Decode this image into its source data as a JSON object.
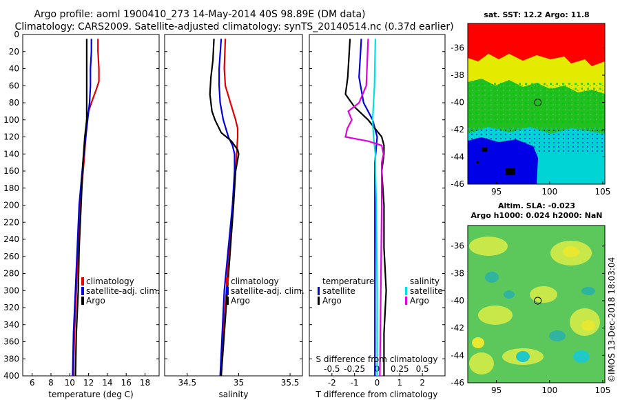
{
  "header": {
    "line1": "Argo profile: aoml 1900410_273 14-May-2014 40S 98.89E (DM data)",
    "line2": "Climatology: CARS2009. Satellite-adjusted climatology: synTS_20140514.nc (0.37d earlier)"
  },
  "depth_ticks": [
    "0",
    "20",
    "40",
    "60",
    "80",
    "100",
    "120",
    "140",
    "160",
    "180",
    "200",
    "220",
    "240",
    "260",
    "280",
    "300",
    "320",
    "340",
    "360",
    "380",
    "400"
  ],
  "colors": {
    "climatology": "#e00000",
    "satellite": "#0000e0",
    "argo": "#000000",
    "sat_salinity": "#00e0e0",
    "argo_salinity": "#e000e0"
  },
  "chart_data": [
    {
      "type": "line",
      "name": "temperature",
      "xlabel": "temperature (deg C)",
      "ylabel": "depth",
      "xlim": [
        5,
        19.5
      ],
      "ylim": [
        400,
        0
      ],
      "xticks": [
        6,
        8,
        10,
        12,
        14,
        16,
        18
      ],
      "xtick_labels": [
        "6",
        "8",
        "10",
        "12",
        "14",
        "16",
        "18"
      ],
      "legend": [
        "climatology",
        "satellite-adj. clim.",
        "Argo"
      ],
      "series": [
        {
          "name": "climatology",
          "depths": [
            5,
            20,
            40,
            55,
            65,
            80,
            90,
            100,
            120,
            150,
            200,
            250,
            300,
            350,
            400
          ],
          "values": [
            13.0,
            13.0,
            13.1,
            13.1,
            12.8,
            12.3,
            12.0,
            11.8,
            11.7,
            11.5,
            11.1,
            10.9,
            10.7,
            10.5,
            10.4
          ]
        },
        {
          "name": "satellite-adj. clim.",
          "depths": [
            5,
            20,
            40,
            60,
            80,
            100,
            120,
            150,
            200,
            250,
            300,
            350,
            400
          ],
          "values": [
            12.3,
            12.3,
            12.2,
            12.2,
            12.1,
            11.9,
            11.7,
            11.4,
            11.0,
            10.8,
            10.6,
            10.4,
            10.3
          ]
        },
        {
          "name": "Argo",
          "depths": [
            5,
            20,
            40,
            60,
            80,
            100,
            120,
            150,
            200,
            250,
            300,
            350,
            400
          ],
          "values": [
            11.8,
            11.8,
            11.8,
            11.8,
            11.8,
            11.8,
            11.6,
            11.4,
            11.2,
            11.0,
            10.9,
            10.7,
            10.6
          ]
        }
      ]
    },
    {
      "type": "line",
      "name": "salinity",
      "xlabel": "salinity",
      "ylabel": "depth",
      "xlim": [
        34.28,
        35.62
      ],
      "ylim": [
        400,
        0
      ],
      "xticks": [
        34.5,
        35,
        35.5
      ],
      "xtick_labels": [
        "34.5",
        "35",
        "35.5"
      ],
      "legend": [
        "climatology",
        "satellite-adj. clim.",
        "Argo"
      ],
      "series": [
        {
          "name": "climatology",
          "depths": [
            5,
            40,
            60,
            80,
            100,
            110,
            120,
            140,
            160,
            200,
            250,
            300,
            350,
            400
          ],
          "values": [
            34.87,
            34.86,
            34.87,
            34.92,
            34.97,
            34.99,
            34.99,
            34.98,
            34.97,
            34.94,
            34.91,
            34.88,
            34.85,
            34.83
          ]
        },
        {
          "name": "satellite-adj. clim.",
          "depths": [
            5,
            40,
            60,
            80,
            100,
            120,
            130,
            140,
            160,
            200,
            250,
            300,
            350,
            400
          ],
          "values": [
            34.83,
            34.81,
            34.81,
            34.82,
            34.85,
            34.9,
            34.94,
            34.96,
            34.96,
            34.94,
            34.9,
            34.86,
            34.84,
            34.82
          ]
        },
        {
          "name": "Argo",
          "depths": [
            5,
            30,
            50,
            70,
            90,
            100,
            115,
            125,
            135,
            140,
            160,
            200,
            250,
            300,
            350,
            400
          ],
          "values": [
            34.76,
            34.75,
            34.73,
            34.72,
            34.74,
            34.77,
            34.83,
            34.93,
            34.99,
            35.0,
            34.97,
            34.95,
            34.92,
            34.89,
            34.86,
            34.83
          ]
        }
      ]
    },
    {
      "type": "line",
      "name": "difference_from_climatology",
      "xlabel": "T difference from climatology",
      "x2label": "S difference from climatology",
      "ylabel": "depth",
      "xlim": [
        -3,
        3
      ],
      "ylim": [
        400,
        0
      ],
      "xticks": [
        -2,
        -1,
        0,
        1,
        2
      ],
      "xtick_labels": [
        "-2",
        "-1",
        "0",
        "1",
        "2"
      ],
      "x2ticks": [
        -0.5,
        -0.25,
        0,
        0.25,
        0.5
      ],
      "x2tick_labels": [
        "-0.5",
        "-0.25",
        "0",
        "0.25",
        "0.5"
      ],
      "legend_temperature": {
        "title": "temperature",
        "items": [
          "satellite",
          "Argo"
        ]
      },
      "legend_salinity": {
        "title": "salinity",
        "items": [
          "satellite",
          "Argo"
        ]
      },
      "series": [
        {
          "name": "temperature satellite",
          "depths": [
            5,
            50,
            80,
            100,
            120,
            150,
            200,
            300,
            400
          ],
          "values": [
            -0.7,
            -0.8,
            -0.6,
            -0.2,
            0.0,
            -0.1,
            -0.1,
            -0.1,
            -0.1
          ]
        },
        {
          "name": "temperature Argo",
          "depths": [
            5,
            50,
            70,
            85,
            100,
            110,
            120,
            130,
            140,
            160,
            200,
            250,
            300,
            350,
            400
          ],
          "values": [
            -1.2,
            -1.3,
            -1.4,
            -1.0,
            -0.4,
            -0.1,
            0.2,
            0.3,
            0.3,
            0.2,
            0.3,
            0.3,
            0.4,
            0.3,
            0.3
          ]
        },
        {
          "name": "salinity satellite",
          "depths": [
            5,
            60,
            80,
            100,
            120,
            140,
            160,
            200,
            300,
            400
          ],
          "values": [
            -0.02,
            -0.03,
            -0.04,
            -0.05,
            -0.04,
            -0.02,
            -0.02,
            -0.01,
            0.0,
            0.0
          ]
        },
        {
          "name": "salinity Argo",
          "depths": [
            5,
            60,
            80,
            90,
            100,
            110,
            120,
            125,
            130,
            140,
            150,
            200,
            300,
            400
          ],
          "values": [
            -0.1,
            -0.12,
            -0.2,
            -0.32,
            -0.28,
            -0.33,
            -0.35,
            -0.1,
            0.05,
            0.07,
            0.05,
            0.05,
            0.04,
            0.03
          ]
        }
      ]
    },
    {
      "type": "heatmap",
      "name": "sst_map",
      "title": "sat. SST: 12.2 Argo: 11.8",
      "xticks": [
        95,
        100,
        105
      ],
      "xtick_labels": [
        "95",
        "100",
        "105"
      ],
      "yticks": [
        -36,
        -38,
        -40,
        -42,
        -44,
        -46
      ],
      "ytick_labels": [
        "-36",
        "-38",
        "-40",
        "-42",
        "-44",
        "-46"
      ],
      "xlim": [
        92.3,
        105.2
      ],
      "ylim": [
        -46,
        -34.2
      ],
      "marker": {
        "lon": 98.89,
        "lat": -40
      }
    },
    {
      "type": "heatmap",
      "name": "sla_map",
      "title_line1": "Altim. SLA: -0.023",
      "title_line2": "Argo h1000: 0.024 h2000: NaN",
      "xticks": [
        95,
        100,
        105
      ],
      "xtick_labels": [
        "95",
        "100",
        "105"
      ],
      "yticks": [
        -36,
        -38,
        -40,
        -42,
        -44,
        -46
      ],
      "ytick_labels": [
        "-36",
        "-38",
        "-40",
        "-42",
        "-44",
        "-46"
      ],
      "xlim": [
        92.3,
        105.2
      ],
      "ylim": [
        -46,
        -34.5
      ],
      "marker": {
        "lon": 98.89,
        "lat": -40
      }
    }
  ],
  "watermark": "©IMOS 13-Dec-2018 18:03:04"
}
